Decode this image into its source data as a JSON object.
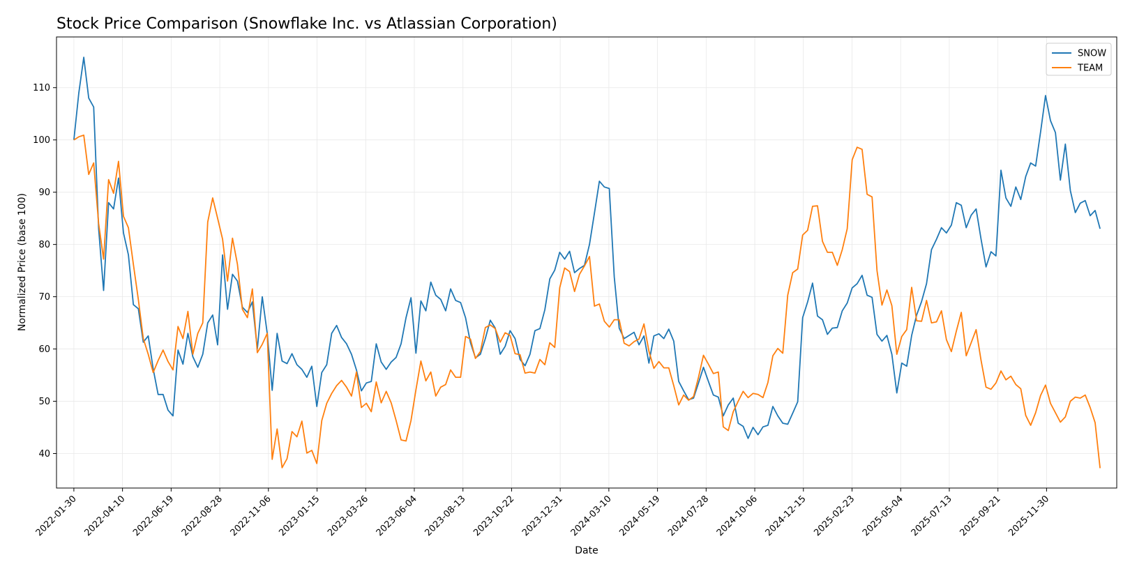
{
  "chart_data": {
    "type": "line",
    "title": "Stock Price Comparison (Snowflake Inc. vs Atlassian Corporation)",
    "xlabel": "Date",
    "ylabel": "Normalized Price (base 100)",
    "x_start": "2022-01-30",
    "x_end": "2026-02-15",
    "xlim": [
      "2022-01-05",
      "2026-03-11"
    ],
    "ylim": [
      33.4,
      119.7
    ],
    "xticks": [
      "2022-01-30",
      "2022-04-10",
      "2022-06-19",
      "2022-08-28",
      "2022-11-06",
      "2023-01-15",
      "2023-03-26",
      "2023-06-04",
      "2023-08-13",
      "2023-10-22",
      "2023-12-31",
      "2024-03-10",
      "2024-05-19",
      "2024-07-28",
      "2024-10-06",
      "2024-12-15",
      "2025-02-23",
      "2025-05-04",
      "2025-07-13",
      "2025-09-21",
      "2025-11-30"
    ],
    "yticks": [
      40,
      50,
      60,
      70,
      80,
      90,
      100,
      110
    ],
    "grid": true,
    "legend": "top-right",
    "series": [
      {
        "name": "SNOW",
        "color": "#1f77b4",
        "values": [
          100.0,
          109.0,
          115.8,
          108.0,
          106.3,
          83.0,
          71.2,
          88.0,
          86.8,
          92.7,
          82.2,
          78.0,
          68.5,
          67.7,
          61.3,
          62.5,
          56.2,
          51.3,
          51.3,
          48.3,
          47.2,
          59.8,
          57.1,
          63.0,
          58.5,
          56.5,
          59.0,
          65.0,
          66.5,
          60.8,
          78.0,
          67.6,
          74.3,
          73.0,
          68.0,
          67.0,
          69.0,
          60.0,
          70.0,
          63.0,
          52.1,
          63.0,
          57.7,
          57.2,
          59.1,
          57.0,
          56.1,
          54.6,
          56.7,
          49.0,
          55.5,
          57.0,
          63.0,
          64.5,
          62.2,
          61.0,
          59.0,
          56.0,
          52.0,
          53.5,
          53.8,
          61.0,
          57.5,
          56.1,
          57.5,
          58.4,
          61.0,
          66.0,
          69.8,
          59.2,
          69.2,
          67.3,
          72.8,
          70.3,
          69.5,
          67.3,
          71.5,
          69.3,
          68.9,
          66.0,
          61.2,
          58.3,
          59.0,
          62.0,
          65.5,
          64.0,
          59.0,
          60.5,
          63.5,
          62.0,
          58.0,
          56.8,
          59.0,
          63.5,
          63.9,
          67.5,
          73.4,
          75.1,
          78.5,
          77.2,
          78.7,
          74.6,
          75.4,
          76.0,
          80.0,
          86.0,
          92.1,
          91.0,
          90.7,
          73.8,
          64.0,
          62.0,
          62.6,
          63.2,
          60.8,
          62.5,
          57.3,
          62.5,
          62.9,
          62.0,
          63.8,
          61.5,
          53.8,
          52.0,
          50.3,
          50.6,
          53.5,
          56.5,
          53.8,
          51.2,
          50.8,
          47.2,
          49.3,
          50.6,
          45.8,
          45.2,
          42.9,
          45.0,
          43.6,
          45.1,
          45.4,
          49.0,
          47.2,
          45.8,
          45.6,
          47.7,
          49.9,
          66.0,
          69.0,
          72.6,
          66.3,
          65.6,
          62.8,
          64.0,
          64.1,
          67.3,
          68.8,
          71.7,
          72.5,
          74.1,
          70.3,
          69.9,
          62.8,
          61.5,
          62.6,
          59.0,
          51.6,
          57.3,
          56.7,
          62.6,
          66.5,
          69.1,
          72.5,
          79.0,
          81.0,
          83.2,
          82.2,
          83.7,
          88.0,
          87.5,
          83.2,
          85.6,
          86.8,
          81.0,
          75.7,
          78.6,
          77.8,
          94.2,
          88.9,
          87.3,
          91.0,
          88.6,
          93.0,
          95.6,
          95.0,
          101.5,
          108.5,
          103.7,
          101.4,
          92.3,
          99.2,
          90.3,
          86.1,
          87.9,
          88.4,
          85.5,
          86.5,
          83.0
        ]
      },
      {
        "name": "TEAM",
        "color": "#ff7f0e",
        "values": [
          100.0,
          100.6,
          100.9,
          93.4,
          95.6,
          84.0,
          77.2,
          92.4,
          89.8,
          95.9,
          85.4,
          83.2,
          76.2,
          69.5,
          62.0,
          59.0,
          55.5,
          57.8,
          59.8,
          57.6,
          56.0,
          64.3,
          62.0,
          67.2,
          59.0,
          63.0,
          65.0,
          84.3,
          88.9,
          85.0,
          81.0,
          73.0,
          81.2,
          76.2,
          67.6,
          66.0,
          71.5,
          59.3,
          60.9,
          63.0,
          38.9,
          44.7,
          37.3,
          39.0,
          44.2,
          43.2,
          46.2,
          40.1,
          40.6,
          38.1,
          46.3,
          49.6,
          51.5,
          53.0,
          54.0,
          52.7,
          51.0,
          55.6,
          48.8,
          49.6,
          48.0,
          53.7,
          49.7,
          51.9,
          49.7,
          46.3,
          42.6,
          42.4,
          46.3,
          52.2,
          57.7,
          53.9,
          55.6,
          51.0,
          52.7,
          53.2,
          56.0,
          54.6,
          54.6,
          62.4,
          61.9,
          58.2,
          59.5,
          64.1,
          64.6,
          63.9,
          61.3,
          63.1,
          62.6,
          59.1,
          58.9,
          55.4,
          55.6,
          55.4,
          58.0,
          57.0,
          61.2,
          60.3,
          71.7,
          75.5,
          74.8,
          71.0,
          74.3,
          75.9,
          77.7,
          68.2,
          68.6,
          65.3,
          64.2,
          65.6,
          65.6,
          61.1,
          60.6,
          61.4,
          61.9,
          64.8,
          59.6,
          56.3,
          57.6,
          56.4,
          56.4,
          53.0,
          49.3,
          51.2,
          50.2,
          50.9,
          54.6,
          58.8,
          57.1,
          55.3,
          55.6,
          45.1,
          44.4,
          48.0,
          50.0,
          51.9,
          50.7,
          51.5,
          51.3,
          50.7,
          53.6,
          58.7,
          60.1,
          59.2,
          70.3,
          74.6,
          75.3,
          81.8,
          82.7,
          87.3,
          87.4,
          80.6,
          78.5,
          78.5,
          76.0,
          79.0,
          83.0,
          96.2,
          98.6,
          98.2,
          89.6,
          89.1,
          75.0,
          68.4,
          71.3,
          68.3,
          59.0,
          62.4,
          63.7,
          71.8,
          65.4,
          65.3,
          69.3,
          65.0,
          65.2,
          67.3,
          61.8,
          59.5,
          63.4,
          67.0,
          58.7,
          61.2,
          63.7,
          57.8,
          52.7,
          52.3,
          53.5,
          55.8,
          54.1,
          54.8,
          53.2,
          52.4,
          47.3,
          45.4,
          47.8,
          51.1,
          53.1,
          49.6,
          47.8,
          46.0,
          47.0,
          50.0,
          50.8,
          50.6,
          51.2,
          48.8,
          45.9,
          37.2
        ]
      }
    ]
  }
}
